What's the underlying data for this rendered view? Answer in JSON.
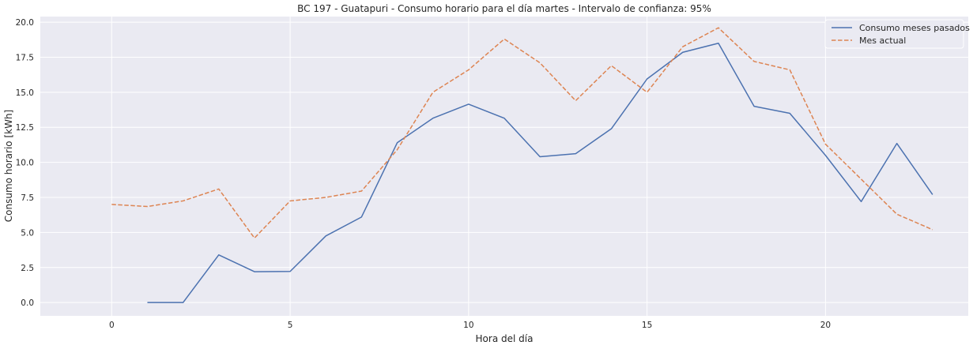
{
  "chart_data": {
    "type": "line",
    "title": "BC 197 - Guatapuri - Consumo horario para el día martes - Intervalo de confianza: 95%",
    "xlabel": "Hora del día",
    "ylabel": "Consumo horario [kWh]",
    "xlim": [
      -2.0,
      24.0
    ],
    "ylim": [
      -0.95,
      20.4
    ],
    "xticks": [
      0,
      5,
      10,
      15,
      20
    ],
    "xtick_labels": [
      "0",
      "5",
      "10",
      "15",
      "20"
    ],
    "yticks": [
      0.0,
      2.5,
      5.0,
      7.5,
      10.0,
      12.5,
      15.0,
      17.5,
      20.0
    ],
    "ytick_labels": [
      "0.0",
      "2.5",
      "5.0",
      "7.5",
      "10.0",
      "12.5",
      "15.0",
      "17.5",
      "20.0"
    ],
    "grid": true,
    "legend_position": "top-right",
    "series": [
      {
        "name": "Consumo meses pasados",
        "color": "#4c72b0",
        "style": "solid",
        "x": [
          1,
          2,
          3,
          4,
          5,
          6,
          7,
          8,
          9,
          10,
          11,
          12,
          13,
          14,
          15,
          16,
          17,
          18,
          19,
          20,
          21,
          22,
          23
        ],
        "values": [
          0.0,
          0.0,
          3.4,
          2.2,
          2.22,
          4.75,
          6.1,
          11.4,
          13.15,
          14.15,
          13.15,
          10.4,
          10.62,
          12.4,
          15.95,
          17.85,
          18.5,
          14.0,
          13.5,
          10.5,
          7.2,
          11.35,
          7.7
        ]
      },
      {
        "name": "Mes actual",
        "color": "#dd8452",
        "style": "dashed",
        "x": [
          0,
          1,
          2,
          3,
          4,
          5,
          6,
          7,
          8,
          9,
          10,
          11,
          12,
          13,
          14,
          15,
          16,
          17,
          18,
          19,
          20,
          21,
          22,
          23
        ],
        "values": [
          7.0,
          6.85,
          7.25,
          8.1,
          4.6,
          7.25,
          7.5,
          7.95,
          10.9,
          15.0,
          16.6,
          18.8,
          17.1,
          14.4,
          16.9,
          15.0,
          18.25,
          19.6,
          17.2,
          16.6,
          11.3,
          8.8,
          6.3,
          5.2
        ]
      }
    ]
  }
}
